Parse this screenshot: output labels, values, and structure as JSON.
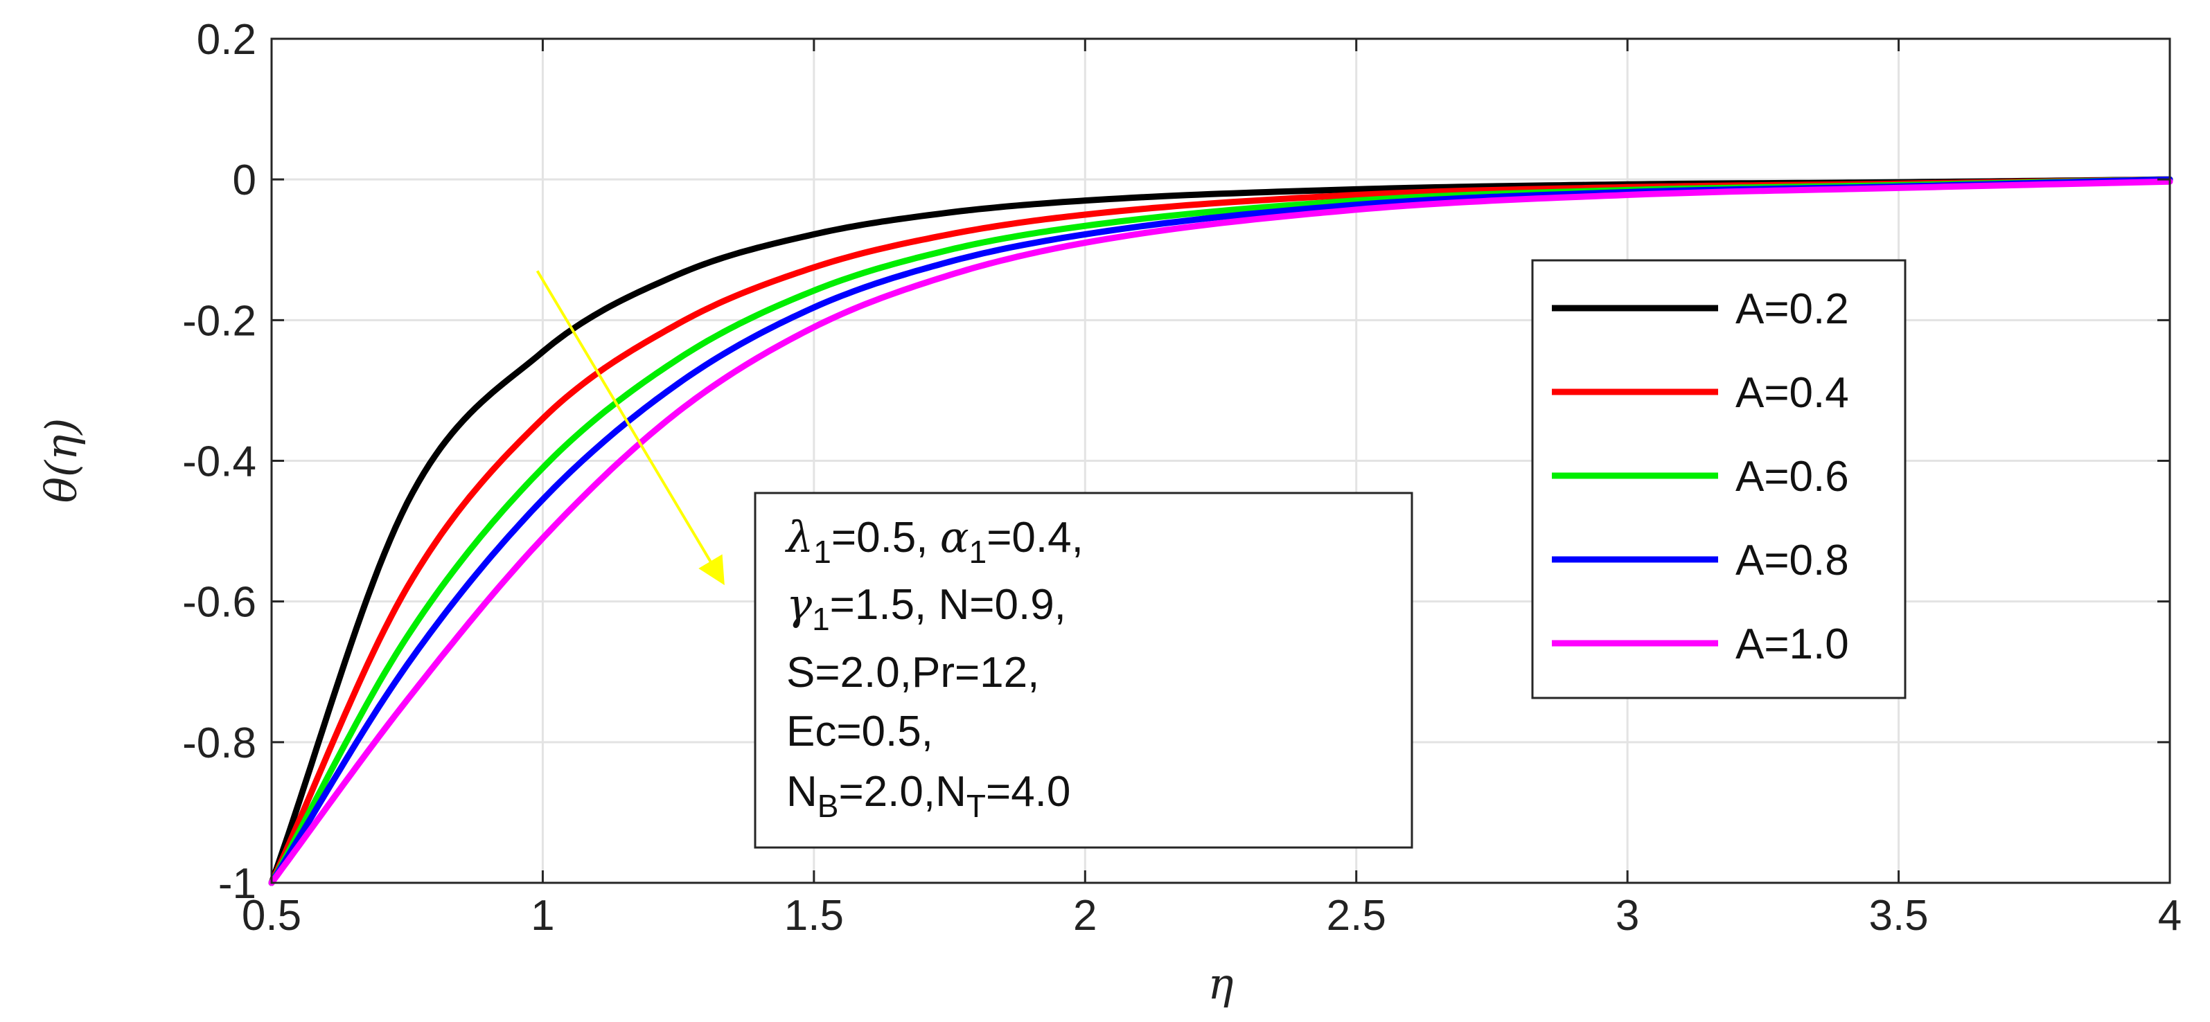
{
  "chart_data": {
    "type": "line",
    "title": "",
    "xlabel": "η",
    "ylabel": "θ(η)",
    "xlim": [
      0.5,
      4
    ],
    "ylim": [
      -1,
      0.2
    ],
    "x_ticks": [
      "0.5",
      "1",
      "1.5",
      "2",
      "2.5",
      "3",
      "3.5",
      "4"
    ],
    "y_ticks": [
      "0.2",
      "0",
      "-0.2",
      "-0.4",
      "-0.6",
      "-0.8",
      "-1"
    ],
    "grid": true,
    "legend_position": "right",
    "x": [
      0.5,
      0.75,
      1.0,
      1.25,
      1.5,
      1.75,
      2.0,
      2.5,
      3.0,
      3.5,
      4.0
    ],
    "series": [
      {
        "name": "A=0.2",
        "color": "#000000",
        "values": [
          -1.0,
          -0.46,
          -0.245,
          -0.135,
          -0.078,
          -0.047,
          -0.03,
          -0.014,
          -0.007,
          -0.004,
          0.0
        ]
      },
      {
        "name": "A=0.4",
        "color": "#ff0000",
        "values": [
          -1.0,
          -0.58,
          -0.34,
          -0.205,
          -0.125,
          -0.078,
          -0.05,
          -0.022,
          -0.011,
          -0.006,
          0.0
        ]
      },
      {
        "name": "A=0.6",
        "color": "#00ee00",
        "values": [
          -1.0,
          -0.65,
          -0.41,
          -0.255,
          -0.158,
          -0.1,
          -0.066,
          -0.03,
          -0.015,
          -0.008,
          0.0
        ]
      },
      {
        "name": "A=0.8",
        "color": "#0000ff",
        "values": [
          -1.0,
          -0.69,
          -0.455,
          -0.29,
          -0.182,
          -0.117,
          -0.078,
          -0.036,
          -0.018,
          -0.01,
          0.0
        ]
      },
      {
        "name": "A=1.0",
        "color": "#ff00ff",
        "values": [
          -1.0,
          -0.74,
          -0.51,
          -0.33,
          -0.21,
          -0.136,
          -0.09,
          -0.043,
          -0.022,
          -0.012,
          -0.003
        ]
      }
    ],
    "annotations": {
      "arrow_color": "#ffff00",
      "arrow": {
        "from": [
          0.99,
          -0.13
        ],
        "to": [
          1.33,
          -0.57
        ]
      },
      "params_box": {
        "line1": {
          "l1_sym": "λ",
          "l1_sub": "1",
          "l1_val": "=0.5, ",
          "a1_sym": "α",
          "a1_sub": "1",
          "a1_val": "=0.4,"
        },
        "line2": {
          "g1_sym": "γ",
          "g1_sub": "1",
          "g1_val": "=1.5, N=0.9,"
        },
        "line3": "S=2.0,Pr=12,",
        "line4": "Ec=0.5,",
        "line5": {
          "nb_sym": "N",
          "nb_sub": "B",
          "nb_val": "=2.0,",
          "nt_sym": "N",
          "nt_sub": "T",
          "nt_val": "=4.0"
        }
      }
    }
  }
}
